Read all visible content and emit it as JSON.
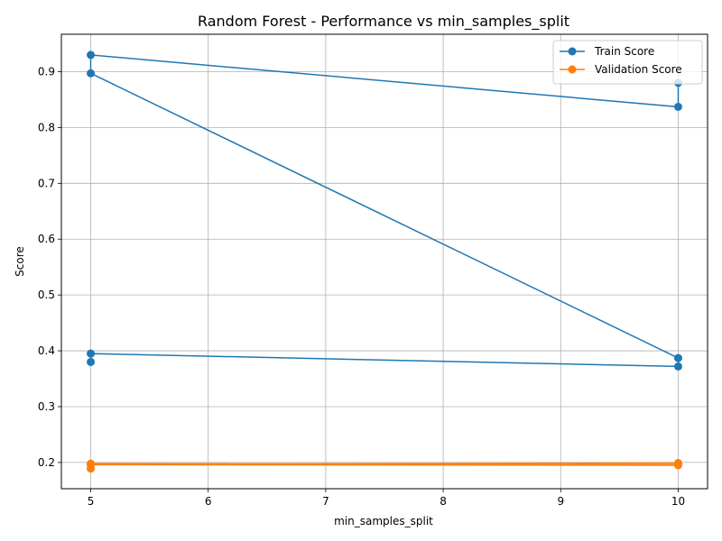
{
  "chart_data": {
    "type": "line",
    "title": "Random Forest - Performance vs min_samples_split",
    "xlabel": "min_samples_split",
    "ylabel": "Score",
    "xlim": [
      4.75,
      10.25
    ],
    "ylim": [
      0.153,
      0.967
    ],
    "xticks": [
      5,
      6,
      7,
      8,
      9,
      10
    ],
    "yticks": [
      0.2,
      0.3,
      0.4,
      0.5,
      0.6,
      0.7,
      0.8,
      0.9
    ],
    "grid": true,
    "legend_position": "top-right",
    "series": [
      {
        "name": "Train Score",
        "color": "#1f77b4",
        "x": [
          5,
          5,
          10,
          10,
          5,
          5,
          10,
          10
        ],
        "y": [
          0.38,
          0.395,
          0.372,
          0.387,
          0.897,
          0.93,
          0.837,
          0.88
        ]
      },
      {
        "name": "Validation Score",
        "color": "#ff7f0e",
        "x": [
          5,
          5,
          10,
          10,
          5,
          5,
          10,
          10
        ],
        "y": [
          0.189,
          0.196,
          0.195,
          0.199,
          0.197,
          0.198,
          0.196,
          0.198
        ]
      }
    ]
  }
}
